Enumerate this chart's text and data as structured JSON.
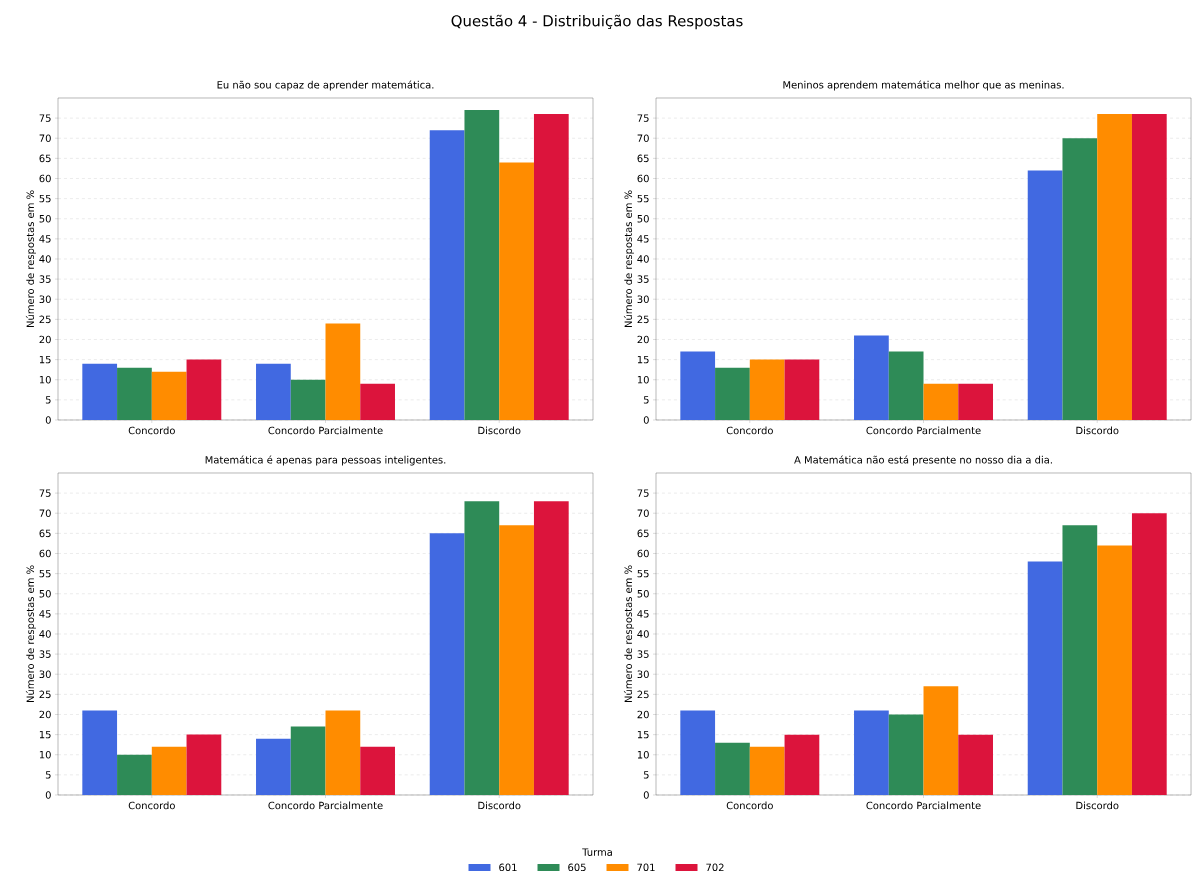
{
  "chart_data": [
    {
      "type": "bar",
      "annotations": [
        "Questão 4 - Distribuição das Respostas"
      ],
      "title": "Eu não sou capaz de aprender matemática.",
      "ylabel": "Número de respostas em %",
      "categories": [
        "Concordo",
        "Concordo Parcialmente",
        "Discordo"
      ],
      "ylim": [
        0,
        80
      ],
      "yticks": [
        0,
        5,
        10,
        15,
        20,
        25,
        30,
        35,
        40,
        45,
        50,
        55,
        60,
        65,
        70,
        75
      ],
      "grid": "y",
      "series": [
        {
          "color": "#4169e1",
          "values": [
            14,
            14,
            72
          ]
        },
        {
          "color": "#2e8b57",
          "values": [
            13,
            10,
            77
          ]
        },
        {
          "color": "#ff8c00",
          "values": [
            12,
            24,
            64
          ]
        },
        {
          "color": "#dc143c",
          "values": [
            15,
            9,
            76
          ]
        }
      ]
    },
    {
      "type": "bar",
      "title": "Meninos aprendem matemática melhor que as meninas.",
      "ylabel": "Número de respostas em %",
      "categories": [
        "Concordo",
        "Concordo Parcialmente",
        "Discordo"
      ],
      "ylim": [
        0,
        80
      ],
      "yticks": [
        0,
        5,
        10,
        15,
        20,
        25,
        30,
        35,
        40,
        45,
        50,
        55,
        60,
        65,
        70,
        75
      ],
      "grid": "y",
      "series": [
        {
          "color": "#4169e1",
          "values": [
            17,
            21,
            62
          ]
        },
        {
          "color": "#2e8b57",
          "values": [
            13,
            17,
            70
          ]
        },
        {
          "color": "#ff8c00",
          "values": [
            15,
            9,
            76
          ]
        },
        {
          "color": "#dc143c",
          "values": [
            15,
            9,
            76
          ]
        }
      ]
    },
    {
      "type": "bar",
      "title": "Matemática é apenas para pessoas inteligentes.",
      "ylabel": "Número de respostas em %",
      "categories": [
        "Concordo",
        "Concordo Parcialmente",
        "Discordo"
      ],
      "ylim": [
        0,
        80
      ],
      "yticks": [
        0,
        5,
        10,
        15,
        20,
        25,
        30,
        35,
        40,
        45,
        50,
        55,
        60,
        65,
        70,
        75
      ],
      "grid": "y",
      "series": [
        {
          "color": "#4169e1",
          "values": [
            21,
            14,
            65
          ]
        },
        {
          "color": "#2e8b57",
          "values": [
            10,
            17,
            73
          ]
        },
        {
          "color": "#ff8c00",
          "values": [
            12,
            21,
            67
          ]
        },
        {
          "color": "#dc143c",
          "values": [
            15,
            12,
            73
          ]
        }
      ]
    },
    {
      "type": "bar",
      "title": "A Matemática não está presente no nosso dia a dia.",
      "ylabel": "Número de respostas em %",
      "categories": [
        "Concordo",
        "Concordo Parcialmente",
        "Discordo"
      ],
      "ylim": [
        0,
        80
      ],
      "yticks": [
        0,
        5,
        10,
        15,
        20,
        25,
        30,
        35,
        40,
        45,
        50,
        55,
        60,
        65,
        70,
        75
      ],
      "grid": "y",
      "legend": "bottom",
      "legend_title": "Turma",
      "series": [
        {
          "name": "601",
          "color": "#4169e1",
          "values": [
            21,
            21,
            58
          ]
        },
        {
          "name": "605",
          "color": "#2e8b57",
          "values": [
            13,
            20,
            67
          ]
        },
        {
          "name": "701",
          "color": "#ff8c00",
          "values": [
            12,
            27,
            62
          ]
        },
        {
          "name": "702",
          "color": "#dc143c",
          "values": [
            15,
            15,
            70
          ]
        }
      ]
    }
  ]
}
